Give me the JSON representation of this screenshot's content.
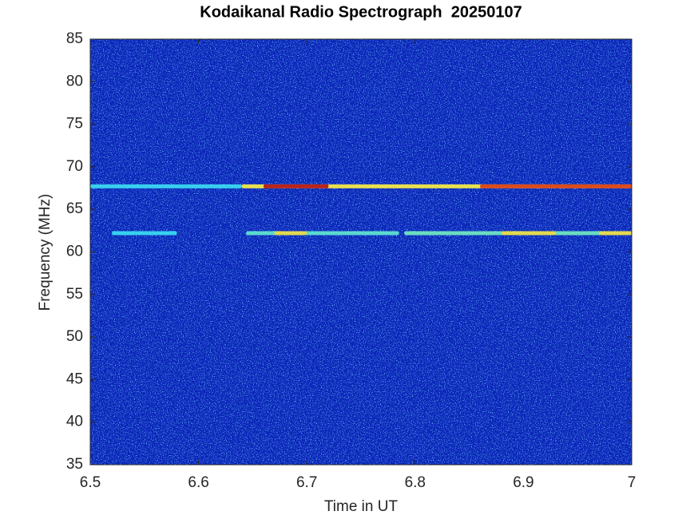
{
  "chart_data": {
    "type": "spectrogram",
    "title": "Kodaikanal Radio Spectrograph  20250107",
    "x_label": "Time in UT",
    "y_label": "Frequency (MHz)",
    "xlim": [
      6.5,
      7
    ],
    "xticks": [
      6.5,
      6.6,
      6.7,
      6.8,
      6.9,
      7
    ],
    "ylim": [
      35,
      85
    ],
    "yticks": [
      35,
      40,
      45,
      50,
      55,
      60,
      65,
      70,
      75,
      80,
      85
    ],
    "background_color": "#0a24b8",
    "bands": [
      {
        "freq": 67.7,
        "segments": [
          {
            "start": 6.5,
            "end": 6.64,
            "color": "#3ad8f0"
          },
          {
            "start": 6.64,
            "end": 7,
            "color": "#f2e94a"
          },
          {
            "start": 6.66,
            "end": 6.72,
            "color": "#b51a1a"
          },
          {
            "start": 6.86,
            "end": 7,
            "color": "#d9421c"
          }
        ]
      },
      {
        "freq": 62.2,
        "segments": [
          {
            "start": 6.52,
            "end": 6.58,
            "color": "#3ad8f0"
          },
          {
            "start": 6.644,
            "end": 6.785,
            "color": "#5fe3d0"
          },
          {
            "start": 6.79,
            "end": 7,
            "color": "#6fe6c0"
          },
          {
            "start": 6.67,
            "end": 6.7,
            "color": "#e9d94a"
          },
          {
            "start": 6.88,
            "end": 6.93,
            "color": "#e9d94a"
          },
          {
            "start": 6.97,
            "end": 7,
            "color": "#e9d94a"
          }
        ]
      }
    ]
  }
}
